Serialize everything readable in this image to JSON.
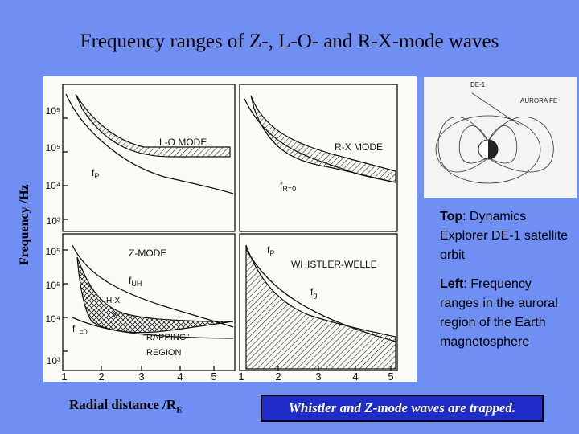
{
  "slide": {
    "title": "Frequency ranges of Z-, L-O- and R-X-mode waves",
    "ylabel": "Frequency /Hz",
    "xlabel_main": "Radial distance /R",
    "xlabel_sub": "E",
    "caption": {
      "top_bold": "Top",
      "top_text": ": Dynamics Explorer DE-1 satellite orbit",
      "left_bold": "Left",
      "left_text": ": Frequency ranges in the auroral region of the Earth magnetosphere"
    },
    "highlight": "Whistler and Z-mode waves are trapped."
  },
  "figure": {
    "yticks_top": [
      "10⁵",
      "10⁵",
      "10⁴",
      "10³"
    ],
    "yticks_bottom": [
      "10⁵",
      "10⁵",
      "10⁴",
      "10³"
    ],
    "xticks": [
      "1",
      "2",
      "3",
      "4",
      "5"
    ],
    "panel_labels": {
      "lo": "L-O MODE",
      "rx": "R-X MODE",
      "z": "Z-MODE",
      "w": "WHISTLER-WELLE"
    },
    "curve_labels": {
      "fp": "f",
      "fp_sub": "P",
      "fr": "f",
      "fr_sub": "R=0",
      "fuh": "f",
      "fuh_sub": "UH",
      "fl": "f",
      "fl_sub": "L=0",
      "hx": "H-X",
      "x": "X",
      "trap1": "\"RAPPING\"",
      "trap2": "REGION",
      "fp2": "f",
      "fp2_sub": "P",
      "fg": "f",
      "fg_sub": "g"
    },
    "orbit_labels": {
      "sat": "DE-1",
      "aurora": "AURORA FE"
    }
  }
}
